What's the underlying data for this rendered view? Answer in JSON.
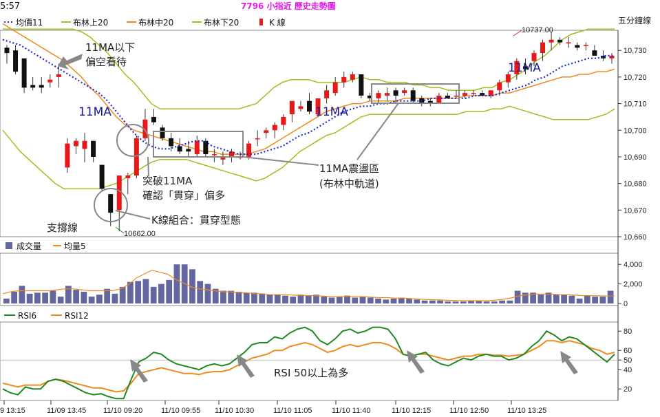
{
  "header": {
    "clock": "5:57",
    "title": "7796 小指近  歷史走勢圖",
    "unit_label": "五分鐘線"
  },
  "legend": [
    {
      "label": "均價11",
      "color": "#1a2ad4",
      "style": "dotted"
    },
    {
      "label": "布林上20",
      "color": "#9ac31c",
      "style": "line"
    },
    {
      "label": "布林中20",
      "color": "#f08a1e",
      "style": "line"
    },
    {
      "label": "布林下20",
      "color": "#9ac31c",
      "style": "line"
    },
    {
      "label": "K 線",
      "color": "#e81818",
      "style": "candle"
    }
  ],
  "volume_legend": [
    {
      "label": "成交量",
      "color": "#6466a0"
    },
    {
      "label": "均量5",
      "color": "#f08a1e"
    }
  ],
  "rsi_legend": [
    {
      "label": "RSI6",
      "color": "#1f8a1f"
    },
    {
      "label": "RSI12",
      "color": "#f08a1e"
    }
  ],
  "price_axis": {
    "ticks": [
      "10,730",
      "10,720",
      "10,710",
      "10,700",
      "10,690",
      "10,680",
      "10,670",
      "10,660"
    ],
    "ylim": [
      10660,
      10736
    ]
  },
  "volume_axis": {
    "ticks": [
      "4,000",
      "2,000",
      "0"
    ],
    "ylim": [
      0,
      5000
    ]
  },
  "rsi_axis": {
    "ticks": [
      "80",
      "60",
      "50",
      "40",
      "20"
    ],
    "ylim": [
      8,
      88
    ]
  },
  "x_axis": {
    "ticks": [
      "9 13:15",
      "11/09 13:45",
      "11/10 09:20",
      "11/10 09:55",
      "11/10 10:30",
      "11/10 11:05",
      "11/10 11:40",
      "11/10 12:15",
      "11/10 12:50",
      "11/10 13:25"
    ]
  },
  "markers": {
    "high": "10737.00",
    "low": "10662.00"
  },
  "annotations": {
    "ma_below": "11MA以下",
    "ma_below2": "偏空看待",
    "ma_left": "11MA",
    "ma_mid": "11MA",
    "ma_right": "11MA",
    "breakout1": "突破11MA",
    "breakout2": "確認「貫穿」偏多",
    "support": "支撐線",
    "kline_combo": "K線組合：貫穿型態",
    "consol1": "11MA震盪區",
    "consol2": "(布林中軌道)",
    "rsi_note": "RSI 50以上為多"
  },
  "chart_data": {
    "type": "candlestick",
    "title": "7796 小指近  歷史走勢圖",
    "candles": [
      {
        "o": 10731,
        "h": 10732,
        "l": 10725,
        "c": 10729
      },
      {
        "o": 10730,
        "h": 10732,
        "l": 10721,
        "c": 10722
      },
      {
        "o": 10727,
        "h": 10727,
        "l": 10714,
        "c": 10716
      },
      {
        "o": 10717,
        "h": 10720,
        "l": 10715,
        "c": 10716
      },
      {
        "o": 10717,
        "h": 10720,
        "l": 10714,
        "c": 10716
      },
      {
        "o": 10718,
        "h": 10721,
        "l": 10716,
        "c": 10719
      },
      {
        "o": 10720,
        "h": 10725,
        "l": 10716,
        "c": 10721
      },
      {
        "o": 10686,
        "h": 10697,
        "l": 10684,
        "c": 10695
      },
      {
        "o": 10694,
        "h": 10697,
        "l": 10691,
        "c": 10696
      },
      {
        "o": 10693,
        "h": 10699,
        "l": 10688,
        "c": 10696
      },
      {
        "o": 10696,
        "h": 10696,
        "l": 10688,
        "c": 10690
      },
      {
        "o": 10687,
        "h": 10687,
        "l": 10677,
        "c": 10678
      },
      {
        "o": 10676,
        "h": 10676,
        "l": 10664,
        "c": 10669
      },
      {
        "o": 10670,
        "h": 10683,
        "l": 10662,
        "c": 10683
      },
      {
        "o": 10682,
        "h": 10684,
        "l": 10676,
        "c": 10683
      },
      {
        "o": 10683,
        "h": 10698,
        "l": 10682,
        "c": 10697
      },
      {
        "o": 10697,
        "h": 10708,
        "l": 10696,
        "c": 10704
      },
      {
        "o": 10705,
        "h": 10708,
        "l": 10702,
        "c": 10703
      },
      {
        "o": 10701,
        "h": 10702,
        "l": 10696,
        "c": 10697
      },
      {
        "o": 10697,
        "h": 10699,
        "l": 10692,
        "c": 10694
      },
      {
        "o": 10694,
        "h": 10697,
        "l": 10691,
        "c": 10692
      },
      {
        "o": 10693,
        "h": 10696,
        "l": 10690,
        "c": 10692
      },
      {
        "o": 10691,
        "h": 10698,
        "l": 10690,
        "c": 10696
      },
      {
        "o": 10696,
        "h": 10697,
        "l": 10690,
        "c": 10691
      },
      {
        "o": 10691,
        "h": 10693,
        "l": 10688,
        "c": 10691
      },
      {
        "o": 10689,
        "h": 10692,
        "l": 10687,
        "c": 10690
      },
      {
        "o": 10690,
        "h": 10693,
        "l": 10688,
        "c": 10692
      },
      {
        "o": 10690,
        "h": 10692,
        "l": 10689,
        "c": 10690
      },
      {
        "o": 10690,
        "h": 10696,
        "l": 10689,
        "c": 10695
      },
      {
        "o": 10697,
        "h": 10700,
        "l": 10694,
        "c": 10697
      },
      {
        "o": 10699,
        "h": 10701,
        "l": 10697,
        "c": 10700
      },
      {
        "o": 10700,
        "h": 10703,
        "l": 10697,
        "c": 10702
      },
      {
        "o": 10702,
        "h": 10706,
        "l": 10700,
        "c": 10705
      },
      {
        "o": 10706,
        "h": 10711,
        "l": 10703,
        "c": 10711
      },
      {
        "o": 10708,
        "h": 10711,
        "l": 10707,
        "c": 10709
      },
      {
        "o": 10711,
        "h": 10714,
        "l": 10706,
        "c": 10707
      },
      {
        "o": 10706,
        "h": 10712,
        "l": 10705,
        "c": 10712
      },
      {
        "o": 10712,
        "h": 10717,
        "l": 10710,
        "c": 10715
      },
      {
        "o": 10714,
        "h": 10720,
        "l": 10713,
        "c": 10718
      },
      {
        "o": 10718,
        "h": 10722,
        "l": 10716,
        "c": 10720
      },
      {
        "o": 10719,
        "h": 10722,
        "l": 10718,
        "c": 10721
      },
      {
        "o": 10721,
        "h": 10721,
        "l": 10712,
        "c": 10713
      },
      {
        "o": 10713,
        "h": 10714,
        "l": 10711,
        "c": 10712
      },
      {
        "o": 10712,
        "h": 10715,
        "l": 10710,
        "c": 10714
      },
      {
        "o": 10713,
        "h": 10716,
        "l": 10711,
        "c": 10714
      },
      {
        "o": 10715,
        "h": 10716,
        "l": 10710,
        "c": 10713
      },
      {
        "o": 10714,
        "h": 10716,
        "l": 10713,
        "c": 10715
      },
      {
        "o": 10715,
        "h": 10716,
        "l": 10710,
        "c": 10711
      },
      {
        "o": 10712,
        "h": 10713,
        "l": 10709,
        "c": 10710
      },
      {
        "o": 10711,
        "h": 10712,
        "l": 10709,
        "c": 10710
      },
      {
        "o": 10710,
        "h": 10714,
        "l": 10710,
        "c": 10713
      },
      {
        "o": 10713,
        "h": 10714,
        "l": 10712,
        "c": 10712
      },
      {
        "o": 10713,
        "h": 10715,
        "l": 10712,
        "c": 10713
      },
      {
        "o": 10713,
        "h": 10715,
        "l": 10712,
        "c": 10714
      },
      {
        "o": 10714,
        "h": 10715,
        "l": 10713,
        "c": 10714
      },
      {
        "o": 10714,
        "h": 10715,
        "l": 10713,
        "c": 10713
      },
      {
        "o": 10713,
        "h": 10715,
        "l": 10712,
        "c": 10715
      },
      {
        "o": 10715,
        "h": 10719,
        "l": 10713,
        "c": 10718
      },
      {
        "o": 10718,
        "h": 10722,
        "l": 10716,
        "c": 10721
      },
      {
        "o": 10721,
        "h": 10727,
        "l": 10719,
        "c": 10726
      },
      {
        "o": 10724,
        "h": 10727,
        "l": 10721,
        "c": 10723
      },
      {
        "o": 10726,
        "h": 10730,
        "l": 10724,
        "c": 10729
      },
      {
        "o": 10729,
        "h": 10734,
        "l": 10726,
        "c": 10733
      },
      {
        "o": 10733,
        "h": 10737,
        "l": 10730,
        "c": 10734
      },
      {
        "o": 10734,
        "h": 10735,
        "l": 10732,
        "c": 10733
      },
      {
        "o": 10733,
        "h": 10735,
        "l": 10731,
        "c": 10733
      },
      {
        "o": 10732,
        "h": 10733,
        "l": 10730,
        "c": 10731
      },
      {
        "o": 10732,
        "h": 10733,
        "l": 10730,
        "c": 10732
      },
      {
        "o": 10730,
        "h": 10732,
        "l": 10728,
        "c": 10728
      },
      {
        "o": 10728,
        "h": 10730,
        "l": 10726,
        "c": 10727
      },
      {
        "o": 10727,
        "h": 10729,
        "l": 10725,
        "c": 10728
      }
    ],
    "ma11": [
      10734,
      10733,
      10732,
      10730,
      10728,
      10726,
      10724,
      10722,
      10720,
      10718,
      10716,
      10714,
      10711,
      10707,
      10703,
      10699,
      10696,
      10694,
      10693,
      10693,
      10694,
      10695,
      10696,
      10696,
      10694,
      10693,
      10692,
      10691,
      10691,
      10691,
      10692,
      10693,
      10694,
      10696,
      10698,
      10699,
      10701,
      10703,
      10705,
      10707,
      10708,
      10709,
      10709,
      10710,
      10710,
      10711,
      10711,
      10711,
      10711,
      10712,
      10712,
      10712,
      10712,
      10712,
      10713,
      10713,
      10713,
      10714,
      10715,
      10716,
      10717,
      10719,
      10720,
      10722,
      10724,
      10725,
      10726,
      10727,
      10727,
      10728,
      10728
    ],
    "boll_upper": [
      10738,
      10738,
      10738,
      10738,
      10738,
      10738,
      10738,
      10738,
      10738,
      10737,
      10735,
      10732,
      10729,
      10725,
      10721,
      10718,
      10714,
      10710,
      10708,
      10708,
      10708,
      10708,
      10708,
      10708,
      10708,
      10708,
      10708,
      10708,
      10709,
      10710,
      10713,
      10716,
      10718,
      10719,
      10719,
      10719,
      10718,
      10718,
      10718,
      10718,
      10719,
      10720,
      10719,
      10719,
      10718,
      10718,
      10718,
      10717,
      10717,
      10716,
      10716,
      10715,
      10715,
      10715,
      10715,
      10716,
      10716,
      10718,
      10719,
      10721,
      10723,
      10726,
      10728,
      10731,
      10734,
      10736,
      10737,
      10738,
      10738,
      10738,
      10738
    ],
    "boll_mid": [
      10740,
      10738,
      10736,
      10734,
      10732,
      10730,
      10728,
      10726,
      10723,
      10720,
      10716,
      10713,
      10709,
      10705,
      10702,
      10700,
      10699,
      10698,
      10697,
      10696,
      10695,
      10694,
      10693,
      10692,
      10692,
      10691,
      10691,
      10691,
      10691,
      10692,
      10693,
      10695,
      10697,
      10699,
      10701,
      10703,
      10705,
      10707,
      10708,
      10709,
      10710,
      10710,
      10711,
      10711,
      10711,
      10711,
      10712,
      10712,
      10712,
      10712,
      10712,
      10712,
      10712,
      10713,
      10713,
      10713,
      10713,
      10714,
      10714,
      10715,
      10716,
      10717,
      10718,
      10719,
      10720,
      10720,
      10721,
      10721,
      10722,
      10722,
      10723
    ],
    "boll_lower": [
      10700,
      10696,
      10692,
      10689,
      10686,
      10683,
      10680,
      10678,
      10678,
      10678,
      10678,
      10678,
      10679,
      10680,
      10682,
      10684,
      10686,
      10688,
      10689,
      10689,
      10689,
      10689,
      10688,
      10687,
      10686,
      10685,
      10684,
      10683,
      10682,
      10681,
      10682,
      10684,
      10686,
      10689,
      10692,
      10694,
      10696,
      10698,
      10699,
      10701,
      10703,
      10705,
      10706,
      10706,
      10706,
      10706,
      10706,
      10706,
      10706,
      10706,
      10706,
      10706,
      10706,
      10707,
      10707,
      10707,
      10708,
      10708,
      10709,
      10708,
      10707,
      10706,
      10705,
      10704,
      10704,
      10704,
      10704,
      10704,
      10705,
      10706,
      10708
    ],
    "volume": [
      500,
      1200,
      1800,
      1000,
      1100,
      1100,
      1300,
      700,
      1800,
      1400,
      1200,
      700,
      900,
      1500,
      1000,
      1700,
      2200,
      2300,
      2500,
      1700,
      2000,
      2400,
      4000,
      4000,
      3500,
      2300,
      2000,
      1500,
      1300,
      1300,
      1200,
      1100,
      1100,
      1000,
      900,
      900,
      800,
      700,
      900,
      800,
      900,
      700,
      600,
      700,
      800,
      600,
      700,
      600,
      500,
      400,
      500,
      600,
      500,
      400,
      300,
      300,
      300,
      200,
      200,
      200,
      300,
      300,
      200,
      200,
      300,
      300,
      1300,
      1100,
      1100,
      900,
      1100,
      900,
      900,
      800,
      500,
      800,
      700,
      700,
      1300
    ],
    "volume_ma5": [
      1000,
      1200,
      1300,
      1300,
      1300,
      1300,
      1300,
      1400,
      1500,
      1500,
      1400,
      1300,
      1300,
      1300,
      1300,
      1500,
      1900,
      2600,
      3000,
      3400,
      3200,
      3000,
      2500,
      2100,
      1700,
      1500,
      1400,
      1300,
      1200,
      1200,
      1100,
      1100,
      1000,
      1000,
      900,
      900,
      900,
      850,
      850,
      800,
      800,
      750,
      700,
      700,
      700,
      700,
      700,
      650,
      600,
      600,
      550,
      550,
      500,
      450,
      400,
      380,
      350,
      320,
      300,
      280,
      280,
      280,
      280,
      350,
      450,
      600,
      800,
      900,
      950,
      950,
      950,
      900,
      900,
      850,
      800,
      800,
      780,
      760,
      760
    ],
    "rsi6": [
      20,
      16,
      14,
      22,
      20,
      20,
      28,
      30,
      28,
      24,
      20,
      16,
      14,
      15,
      12,
      10,
      10,
      30,
      48,
      52,
      58,
      56,
      50,
      46,
      44,
      42,
      40,
      44,
      46,
      44,
      46,
      52,
      58,
      66,
      68,
      68,
      74,
      72,
      78,
      82,
      84,
      80,
      70,
      66,
      72,
      80,
      82,
      78,
      80,
      84,
      84,
      82,
      72,
      56,
      54,
      56,
      58,
      50,
      46,
      44,
      48,
      52,
      50,
      54,
      56,
      54,
      54,
      50,
      52,
      56,
      64,
      70,
      80,
      76,
      70,
      74,
      72,
      66,
      60,
      54,
      48,
      56
    ],
    "rsi12": [
      26,
      24,
      22,
      24,
      24,
      24,
      28,
      30,
      29,
      27,
      25,
      23,
      21,
      21,
      19,
      17,
      18,
      26,
      36,
      38,
      40,
      42,
      40,
      38,
      36,
      36,
      35,
      37,
      38,
      38,
      40,
      44,
      48,
      52,
      54,
      56,
      60,
      60,
      64,
      66,
      68,
      66,
      62,
      58,
      60,
      64,
      66,
      64,
      66,
      68,
      68,
      66,
      62,
      56,
      54,
      56,
      56,
      54,
      52,
      50,
      52,
      54,
      54,
      56,
      56,
      55,
      55,
      54,
      55,
      56,
      60,
      64,
      70,
      70,
      68,
      70,
      68,
      66,
      62,
      60,
      56,
      58
    ]
  }
}
